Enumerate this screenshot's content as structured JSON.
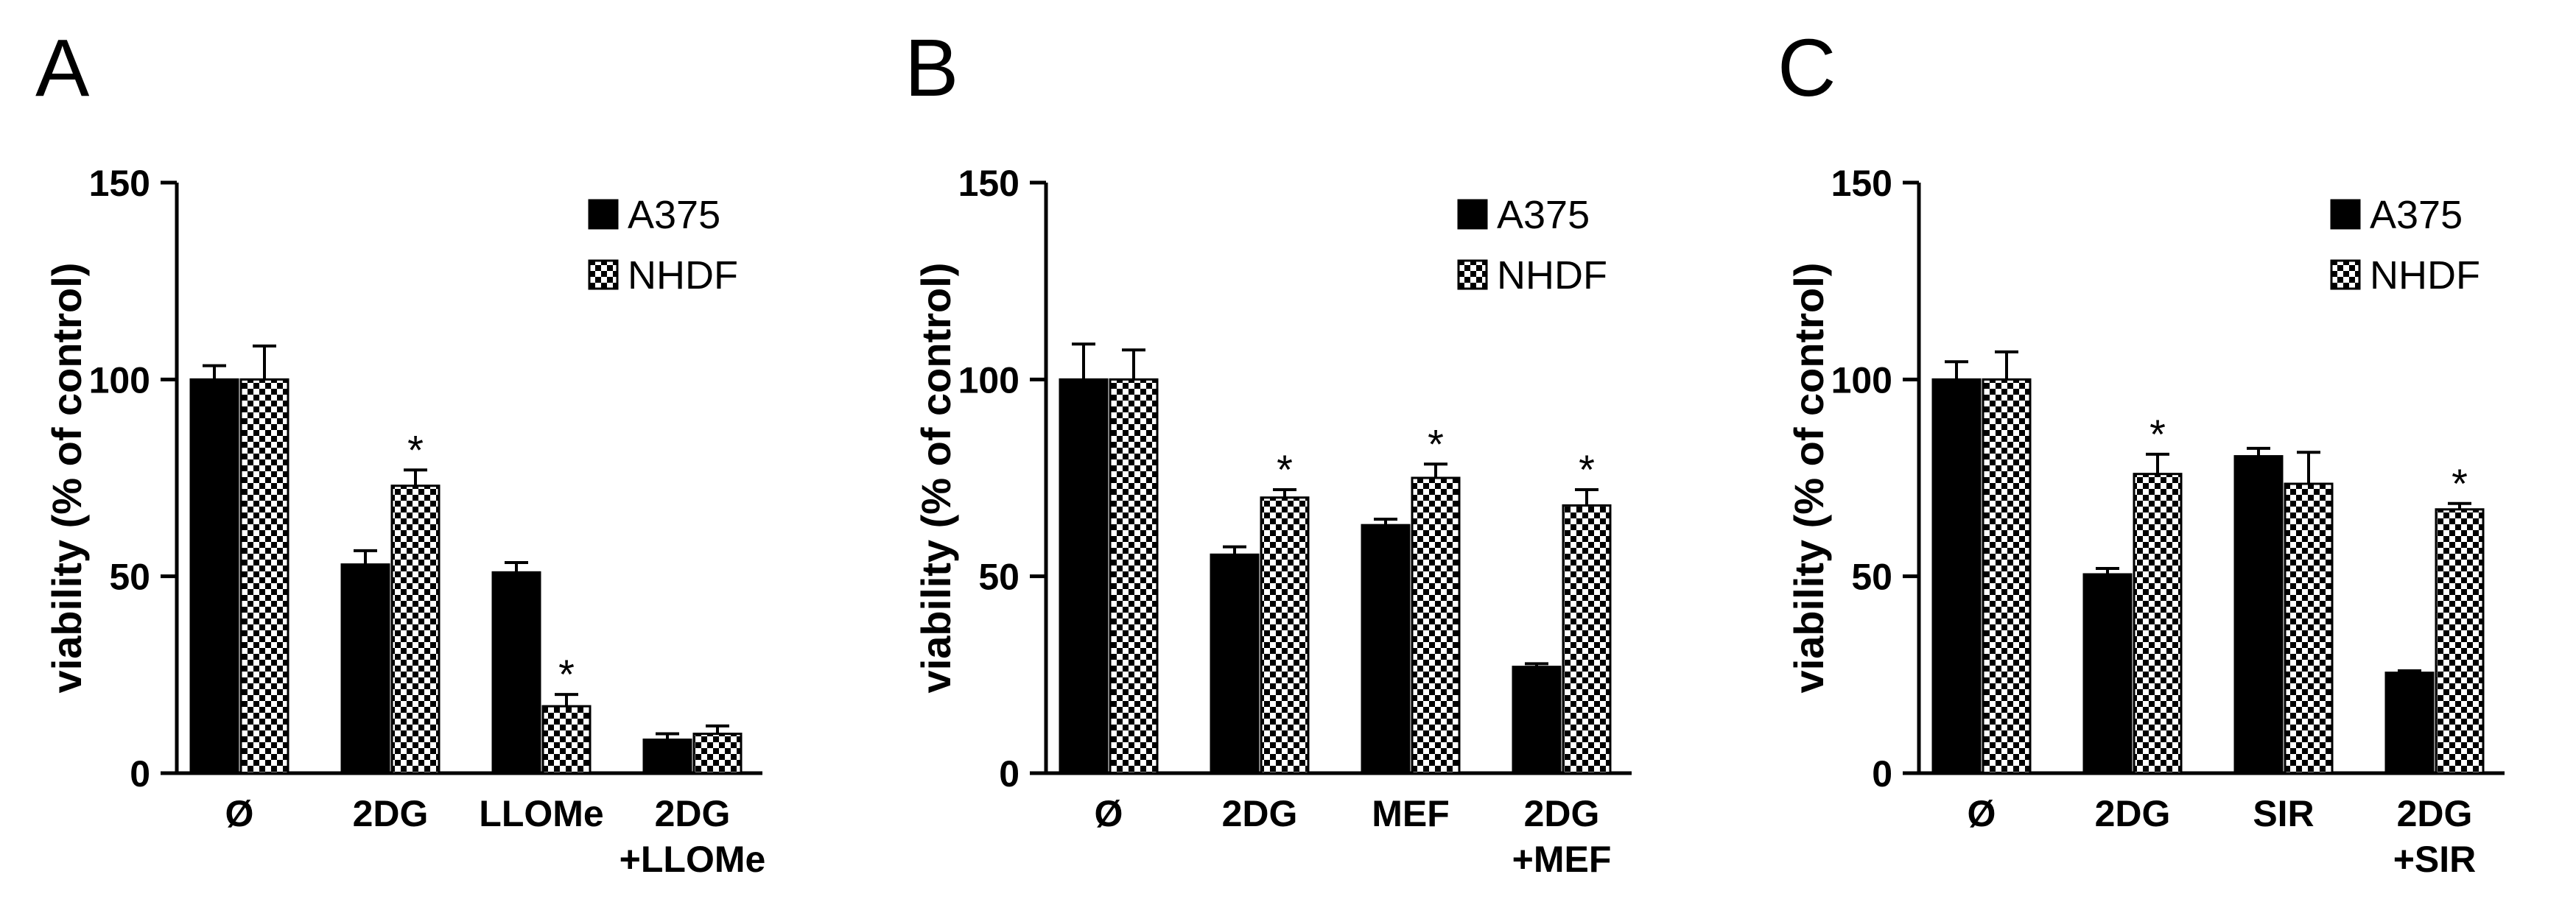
{
  "colors": {
    "a375": "#000000",
    "nhdf_check_dark": "#000000",
    "nhdf_check_light": "#ffffff"
  },
  "chart_data": [
    {
      "panel": "A",
      "type": "bar",
      "ylabel": "viability (% of control)",
      "ylim": [
        0,
        150
      ],
      "yticks": [
        0,
        50,
        100,
        150
      ],
      "categories": [
        [
          "Ø"
        ],
        [
          "2DG"
        ],
        [
          "LLOMe"
        ],
        [
          "2DG",
          "+LLOMe"
        ]
      ],
      "legend": [
        "A375",
        "NHDF"
      ],
      "legend_position": "top-right",
      "series": [
        {
          "name": "A375",
          "fill": "solid",
          "values": [
            100,
            53,
            51,
            8.5
          ],
          "errors": [
            3.5,
            3.5,
            2.5,
            1.5
          ],
          "significant": [
            false,
            false,
            false,
            false
          ]
        },
        {
          "name": "NHDF",
          "fill": "checkered",
          "values": [
            100,
            73,
            17,
            10
          ],
          "errors": [
            8.5,
            4,
            3,
            2
          ],
          "significant": [
            false,
            true,
            true,
            false
          ]
        }
      ]
    },
    {
      "panel": "B",
      "type": "bar",
      "ylabel": "viability (% of control)",
      "ylim": [
        0,
        150
      ],
      "yticks": [
        0,
        50,
        100,
        150
      ],
      "categories": [
        [
          "Ø"
        ],
        [
          "2DG"
        ],
        [
          "MEF"
        ],
        [
          "2DG",
          "+MEF"
        ]
      ],
      "legend": [
        "A375",
        "NHDF"
      ],
      "legend_position": "top-right",
      "series": [
        {
          "name": "A375",
          "fill": "solid",
          "values": [
            100,
            55.5,
            63,
            27
          ],
          "errors": [
            9,
            2,
            1.5,
            0.8
          ],
          "significant": [
            false,
            false,
            false,
            false
          ]
        },
        {
          "name": "NHDF",
          "fill": "checkered",
          "values": [
            100,
            70,
            75,
            68
          ],
          "errors": [
            7.5,
            2,
            3.5,
            4
          ],
          "significant": [
            false,
            true,
            true,
            true
          ]
        }
      ]
    },
    {
      "panel": "C",
      "type": "bar",
      "ylabel": "viability (% of control)",
      "ylim": [
        0,
        150
      ],
      "yticks": [
        0,
        50,
        100,
        150
      ],
      "categories": [
        [
          "Ø"
        ],
        [
          "2DG"
        ],
        [
          "SIR"
        ],
        [
          "2DG",
          "+SIR"
        ]
      ],
      "legend": [
        "A375",
        "NHDF"
      ],
      "legend_position": "top-right",
      "series": [
        {
          "name": "A375",
          "fill": "solid",
          "values": [
            100,
            50.5,
            80.5,
            25.5
          ],
          "errors": [
            4.5,
            1.5,
            2,
            0.5
          ],
          "significant": [
            false,
            false,
            false,
            false
          ]
        },
        {
          "name": "NHDF",
          "fill": "checkered",
          "values": [
            100,
            76,
            73.5,
            67
          ],
          "errors": [
            7,
            5,
            8,
            1.5
          ],
          "significant": [
            false,
            true,
            false,
            true
          ]
        }
      ]
    }
  ]
}
